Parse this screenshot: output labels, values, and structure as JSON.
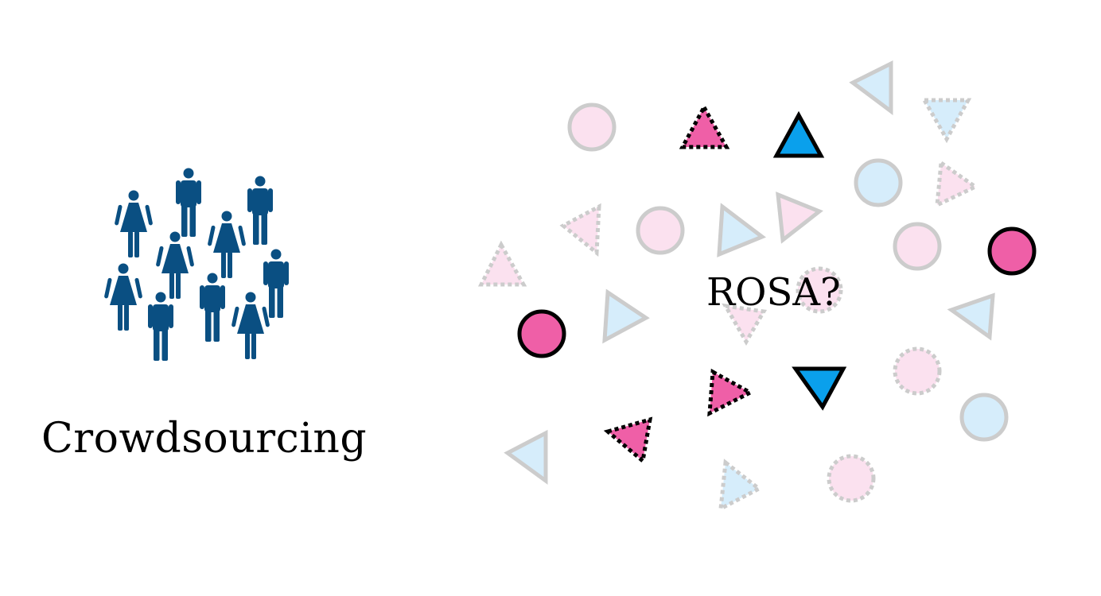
{
  "crowd": {
    "label": "Crowdsourcing",
    "icon": "people-crowd-icon",
    "color": "#0a4f82"
  },
  "question": {
    "label": "ROSA?"
  },
  "colors": {
    "pink": "#ef5fa7",
    "blue": "#0aa0ec",
    "pink_faded": "#fbe1ef",
    "blue_faded": "#d6edfb",
    "faded_stroke": "#cccccc",
    "outline": "#000000"
  }
}
